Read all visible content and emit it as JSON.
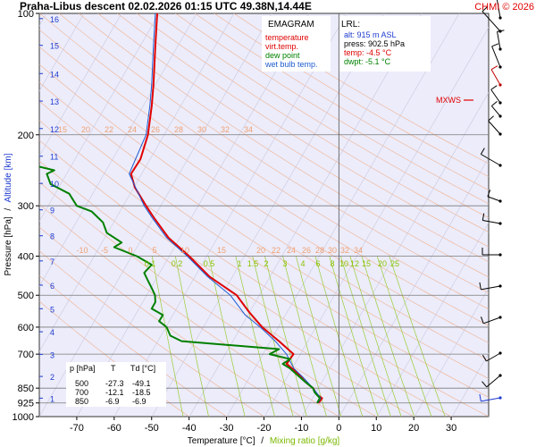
{
  "header": {
    "title": "Praha-Libus   descent   02.02.2026 01:15 UTC  49.38N,14.44E",
    "credit": "CHMI © 2026"
  },
  "legend": {
    "heading": "EMAGRAM",
    "items": [
      {
        "label": "temperature",
        "color": "#e00000"
      },
      {
        "label": "virt.temp.",
        "color": "#e00000"
      },
      {
        "label": "dew point",
        "color": "#008000"
      },
      {
        "label": "wet bulb temp.",
        "color": "#1e5bd0"
      }
    ]
  },
  "lrl": {
    "heading": "LRL:",
    "alt": "alt: 915 m ASL",
    "press": "press: 902.5 hPa",
    "temp": "temp: -4.5 °C",
    "dwpt": "dwpt: -5.1 °C"
  },
  "table": {
    "headers": [
      "p [hPa]",
      "T",
      "Td [°C]"
    ],
    "rows": [
      [
        "500",
        "-27.3",
        "-49.1"
      ],
      [
        "700",
        "-12.1",
        "-18.5"
      ],
      [
        "850",
        "-6.9",
        "-6.9"
      ]
    ]
  },
  "mxws_label": "MXWS",
  "colors": {
    "temp": "#e00000",
    "dew": "#008000",
    "wetbulb": "#1e5bd0",
    "dry_adiabat": "#f2b08a",
    "mixing": "#9acd32",
    "plot_bg": "#ececfb",
    "isotherm": "#b8b8c8"
  },
  "chart_data": {
    "type": "line",
    "ylabel_left": "Pressure [hPa]",
    "ylabel_sep": "/",
    "ylabel_right": "Altitude [km]",
    "xlabel_left": "Temperature [°C]",
    "xlabel_sep": "/",
    "xlabel_right": "Mixing ratio [g/kg]",
    "xlim": [
      -80,
      40
    ],
    "ylim": [
      1000,
      100
    ],
    "y_scale": "log",
    "x_ticks": [
      -70,
      -60,
      -50,
      -40,
      -30,
      -20,
      -10,
      0,
      10,
      20,
      30
    ],
    "p_ticks": [
      100,
      200,
      300,
      400,
      500,
      600,
      700,
      850,
      925,
      1000
    ],
    "alt_ticks": [
      {
        "label": "1",
        "p": 900
      },
      {
        "label": "2",
        "p": 795
      },
      {
        "label": "3",
        "p": 701
      },
      {
        "label": "4",
        "p": 616
      },
      {
        "label": "5",
        "p": 540
      },
      {
        "label": "6",
        "p": 472
      },
      {
        "label": "7",
        "p": 411
      },
      {
        "label": "8",
        "p": 356
      },
      {
        "label": "9",
        "p": 307
      },
      {
        "label": "10",
        "p": 264
      },
      {
        "label": "11",
        "p": 226
      },
      {
        "label": "12",
        "p": 193
      },
      {
        "label": "13",
        "p": 165
      },
      {
        "label": "14",
        "p": 141
      },
      {
        "label": "15",
        "p": 120
      },
      {
        "label": "16",
        "p": 103
      }
    ],
    "dry_adiabat_labels_upper": [
      "15",
      "20",
      "22",
      "24",
      "26",
      "28",
      "30",
      "32",
      "34"
    ],
    "dry_adiabat_labels_lower": [
      "-10",
      "-5",
      "0",
      "5",
      "10",
      "15",
      "20",
      "22",
      "24",
      "26",
      "28",
      "30",
      "32",
      "34"
    ],
    "mixing_ratio_labels": [
      "0.1",
      "0.2",
      "0.5",
      "1",
      "1.5",
      "2",
      "3",
      "4",
      "6",
      "8",
      "10",
      "12",
      "15",
      "20",
      "25"
    ],
    "series": [
      {
        "name": "temperature",
        "points": [
          [
            925,
            -5.5
          ],
          [
            900,
            -4.5
          ],
          [
            880,
            -6
          ],
          [
            850,
            -6.9
          ],
          [
            820,
            -9
          ],
          [
            780,
            -11
          ],
          [
            740,
            -14
          ],
          [
            700,
            -12.1
          ],
          [
            650,
            -16
          ],
          [
            600,
            -20.5
          ],
          [
            550,
            -24
          ],
          [
            500,
            -27.3
          ],
          [
            450,
            -34.5
          ],
          [
            400,
            -40
          ],
          [
            360,
            -45.5
          ],
          [
            320,
            -49.5
          ],
          [
            300,
            -51.5
          ],
          [
            270,
            -54.5
          ],
          [
            250,
            -55.5
          ],
          [
            230,
            -53
          ],
          [
            200,
            -51
          ],
          [
            170,
            -50
          ],
          [
            150,
            -49.5
          ],
          [
            120,
            -49
          ],
          [
            100,
            -48.5
          ]
        ]
      },
      {
        "name": "virt.temp.",
        "points": [
          [
            925,
            -5.2
          ],
          [
            900,
            -4.3
          ],
          [
            880,
            -5.8
          ],
          [
            850,
            -6.7
          ],
          [
            820,
            -8.8
          ],
          [
            780,
            -10.8
          ],
          [
            740,
            -13.8
          ],
          [
            700,
            -12
          ],
          [
            650,
            -15.9
          ],
          [
            600,
            -20.4
          ],
          [
            550,
            -23.9
          ],
          [
            500,
            -27.2
          ],
          [
            450,
            -34.5
          ],
          [
            400,
            -40
          ],
          [
            360,
            -45.5
          ],
          [
            320,
            -49.5
          ],
          [
            300,
            -51.5
          ],
          [
            270,
            -54.5
          ],
          [
            250,
            -55.5
          ],
          [
            230,
            -53
          ],
          [
            200,
            -51
          ],
          [
            170,
            -50
          ],
          [
            150,
            -49.5
          ],
          [
            120,
            -49
          ],
          [
            100,
            -48.5
          ]
        ]
      },
      {
        "name": "wet bulb temp.",
        "points": [
          [
            925,
            -5.6
          ],
          [
            900,
            -4.8
          ],
          [
            850,
            -6.9
          ],
          [
            800,
            -9.5
          ],
          [
            760,
            -12
          ],
          [
            700,
            -14
          ],
          [
            650,
            -17
          ],
          [
            600,
            -21
          ],
          [
            560,
            -25
          ],
          [
            500,
            -29
          ],
          [
            450,
            -35
          ],
          [
            400,
            -40.5
          ],
          [
            360,
            -46
          ],
          [
            320,
            -50
          ],
          [
            300,
            -52
          ],
          [
            250,
            -56
          ],
          [
            200,
            -51.5
          ],
          [
            170,
            -50.5
          ],
          [
            150,
            -50
          ],
          [
            120,
            -49.5
          ],
          [
            100,
            -49
          ]
        ]
      },
      {
        "name": "dew point",
        "points": [
          [
            925,
            -5.8
          ],
          [
            900,
            -5.1
          ],
          [
            870,
            -6.5
          ],
          [
            850,
            -6.9
          ],
          [
            820,
            -9
          ],
          [
            790,
            -11
          ],
          [
            760,
            -13
          ],
          [
            740,
            -15
          ],
          [
            720,
            -13
          ],
          [
            700,
            -18.5
          ],
          [
            680,
            -16
          ],
          [
            650,
            -42
          ],
          [
            630,
            -45
          ],
          [
            600,
            -46
          ],
          [
            580,
            -48
          ],
          [
            560,
            -47
          ],
          [
            540,
            -50
          ],
          [
            520,
            -49
          ],
          [
            500,
            -49.1
          ],
          [
            480,
            -50
          ],
          [
            460,
            -51
          ],
          [
            440,
            -52
          ],
          [
            420,
            -50
          ],
          [
            400,
            -54
          ],
          [
            380,
            -60
          ],
          [
            370,
            -58
          ],
          [
            350,
            -62
          ],
          [
            330,
            -63
          ],
          [
            310,
            -66
          ],
          [
            300,
            -70
          ],
          [
            280,
            -72
          ],
          [
            265,
            -77
          ],
          [
            250,
            -78
          ],
          [
            245,
            -76
          ],
          [
            240,
            -80
          ]
        ]
      }
    ]
  }
}
